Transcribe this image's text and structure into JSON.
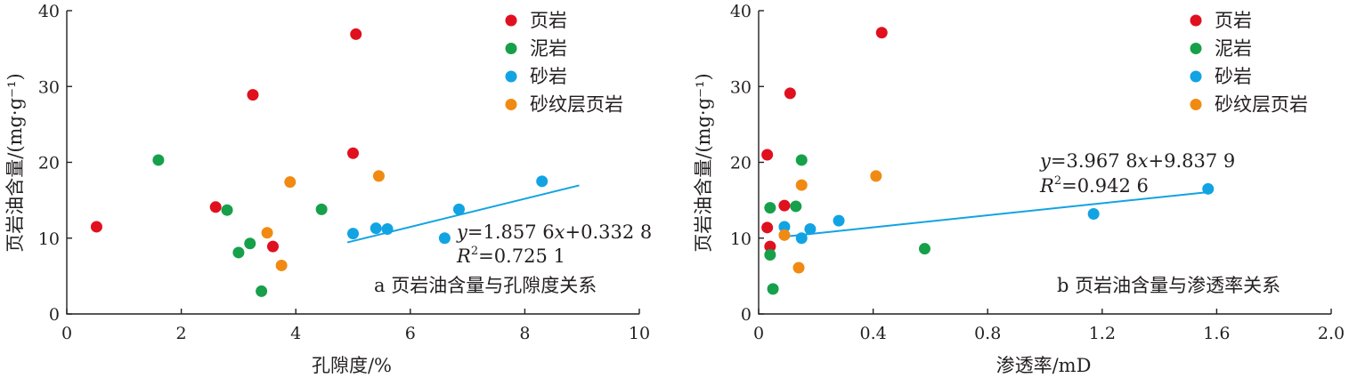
{
  "colors": {
    "shale": "#e0101e",
    "mudstone": "#16a04a",
    "sandstone": "#12a3e3",
    "laminated_shale": "#f18a12",
    "fit_line": "#12a3e3"
  },
  "chart_data": [
    {
      "type": "scatter",
      "caption": "a 页岩油含量与孔隙度关系",
      "xlabel": "孔隙度/%",
      "ylabel": "页岩油含量/(mg·g⁻¹)",
      "xlim": [
        0,
        10
      ],
      "ylim": [
        0,
        40
      ],
      "x_ticks": [
        0,
        2,
        4,
        6,
        8,
        10
      ],
      "y_ticks": [
        0,
        10,
        20,
        30,
        40
      ],
      "x_tick_labels": [
        "0",
        "2",
        "4",
        "6",
        "8",
        "10"
      ],
      "y_tick_labels": [
        "0",
        "10",
        "20",
        "30",
        "40"
      ],
      "grid": false,
      "legend_position": "top-right",
      "series": [
        {
          "name": "页岩",
          "color_key": "shale",
          "points": [
            [
              0.52,
              11.5
            ],
            [
              2.6,
              14.1
            ],
            [
              3.25,
              28.9
            ],
            [
              3.6,
              8.9
            ],
            [
              5.0,
              21.2
            ],
            [
              5.05,
              36.9
            ]
          ]
        },
        {
          "name": "泥岩",
          "color_key": "mudstone",
          "points": [
            [
              1.6,
              20.3
            ],
            [
              2.8,
              13.7
            ],
            [
              3.0,
              8.1
            ],
            [
              3.2,
              9.3
            ],
            [
              3.4,
              3.0
            ],
            [
              4.45,
              13.8
            ]
          ]
        },
        {
          "name": "砂岩",
          "color_key": "sandstone",
          "points": [
            [
              5.0,
              10.6
            ],
            [
              5.4,
              11.3
            ],
            [
              5.6,
              11.2
            ],
            [
              6.6,
              10.0
            ],
            [
              6.85,
              13.8
            ],
            [
              8.3,
              17.5
            ]
          ]
        },
        {
          "name": "砂纹层页岩",
          "color_key": "laminated_shale",
          "points": [
            [
              3.5,
              10.7
            ],
            [
              3.75,
              6.4
            ],
            [
              3.9,
              17.4
            ],
            [
              5.45,
              18.2
            ]
          ]
        }
      ],
      "fit": {
        "x_range": [
          4.9,
          8.95
        ],
        "slope": 1.8576,
        "intercept": 0.3328,
        "equation_lhs": "y",
        "equation_rhs_a": "=1.857 6",
        "equation_rhs_var": "x",
        "equation_rhs_b": "+0.332 8",
        "r2_label": "R",
        "r2_sup": "2",
        "r2_value": "=0.725 1"
      }
    },
    {
      "type": "scatter",
      "caption": "b 页岩油含量与渗透率关系",
      "xlabel": "渗透率/mD",
      "ylabel": "页岩油含量/(mg·g⁻¹)",
      "xlim": [
        0,
        2.0
      ],
      "ylim": [
        0,
        40
      ],
      "x_ticks": [
        0,
        0.4,
        0.8,
        1.2,
        1.6,
        2.0
      ],
      "y_ticks": [
        0,
        10,
        20,
        30,
        40
      ],
      "x_tick_labels": [
        "0",
        "0.4",
        "0.8",
        "1.2",
        "1.6",
        "2.0"
      ],
      "y_tick_labels": [
        "0",
        "10",
        "20",
        "30",
        "40"
      ],
      "grid": false,
      "legend_position": "top-right",
      "series": [
        {
          "name": "页岩",
          "color_key": "shale",
          "points": [
            [
              0.03,
              21.0
            ],
            [
              0.03,
              11.4
            ],
            [
              0.04,
              8.9
            ],
            [
              0.09,
              14.3
            ],
            [
              0.11,
              29.1
            ],
            [
              0.43,
              37.1
            ]
          ]
        },
        {
          "name": "泥岩",
          "color_key": "mudstone",
          "points": [
            [
              0.04,
              14.0
            ],
            [
              0.04,
              7.8
            ],
            [
              0.05,
              3.3
            ],
            [
              0.13,
              14.2
            ],
            [
              0.15,
              20.3
            ],
            [
              0.58,
              8.6
            ]
          ]
        },
        {
          "name": "砂岩",
          "color_key": "sandstone",
          "points": [
            [
              0.09,
              11.5
            ],
            [
              0.15,
              10.0
            ],
            [
              0.18,
              11.2
            ],
            [
              0.28,
              12.3
            ],
            [
              1.17,
              13.2
            ],
            [
              1.57,
              16.5
            ]
          ]
        },
        {
          "name": "砂纹层页岩",
          "color_key": "laminated_shale",
          "points": [
            [
              0.09,
              10.4
            ],
            [
              0.14,
              6.1
            ],
            [
              0.15,
              17.0
            ],
            [
              0.41,
              18.2
            ]
          ]
        }
      ],
      "fit": {
        "x_range": [
          0.08,
          1.56
        ],
        "slope": 3.9678,
        "intercept": 9.8379,
        "equation_lhs": "y",
        "equation_rhs_a": "=3.967 8",
        "equation_rhs_var": "x",
        "equation_rhs_b": "+9.837 9",
        "r2_label": "R",
        "r2_sup": "2",
        "r2_value": "=0.942 6"
      }
    }
  ]
}
